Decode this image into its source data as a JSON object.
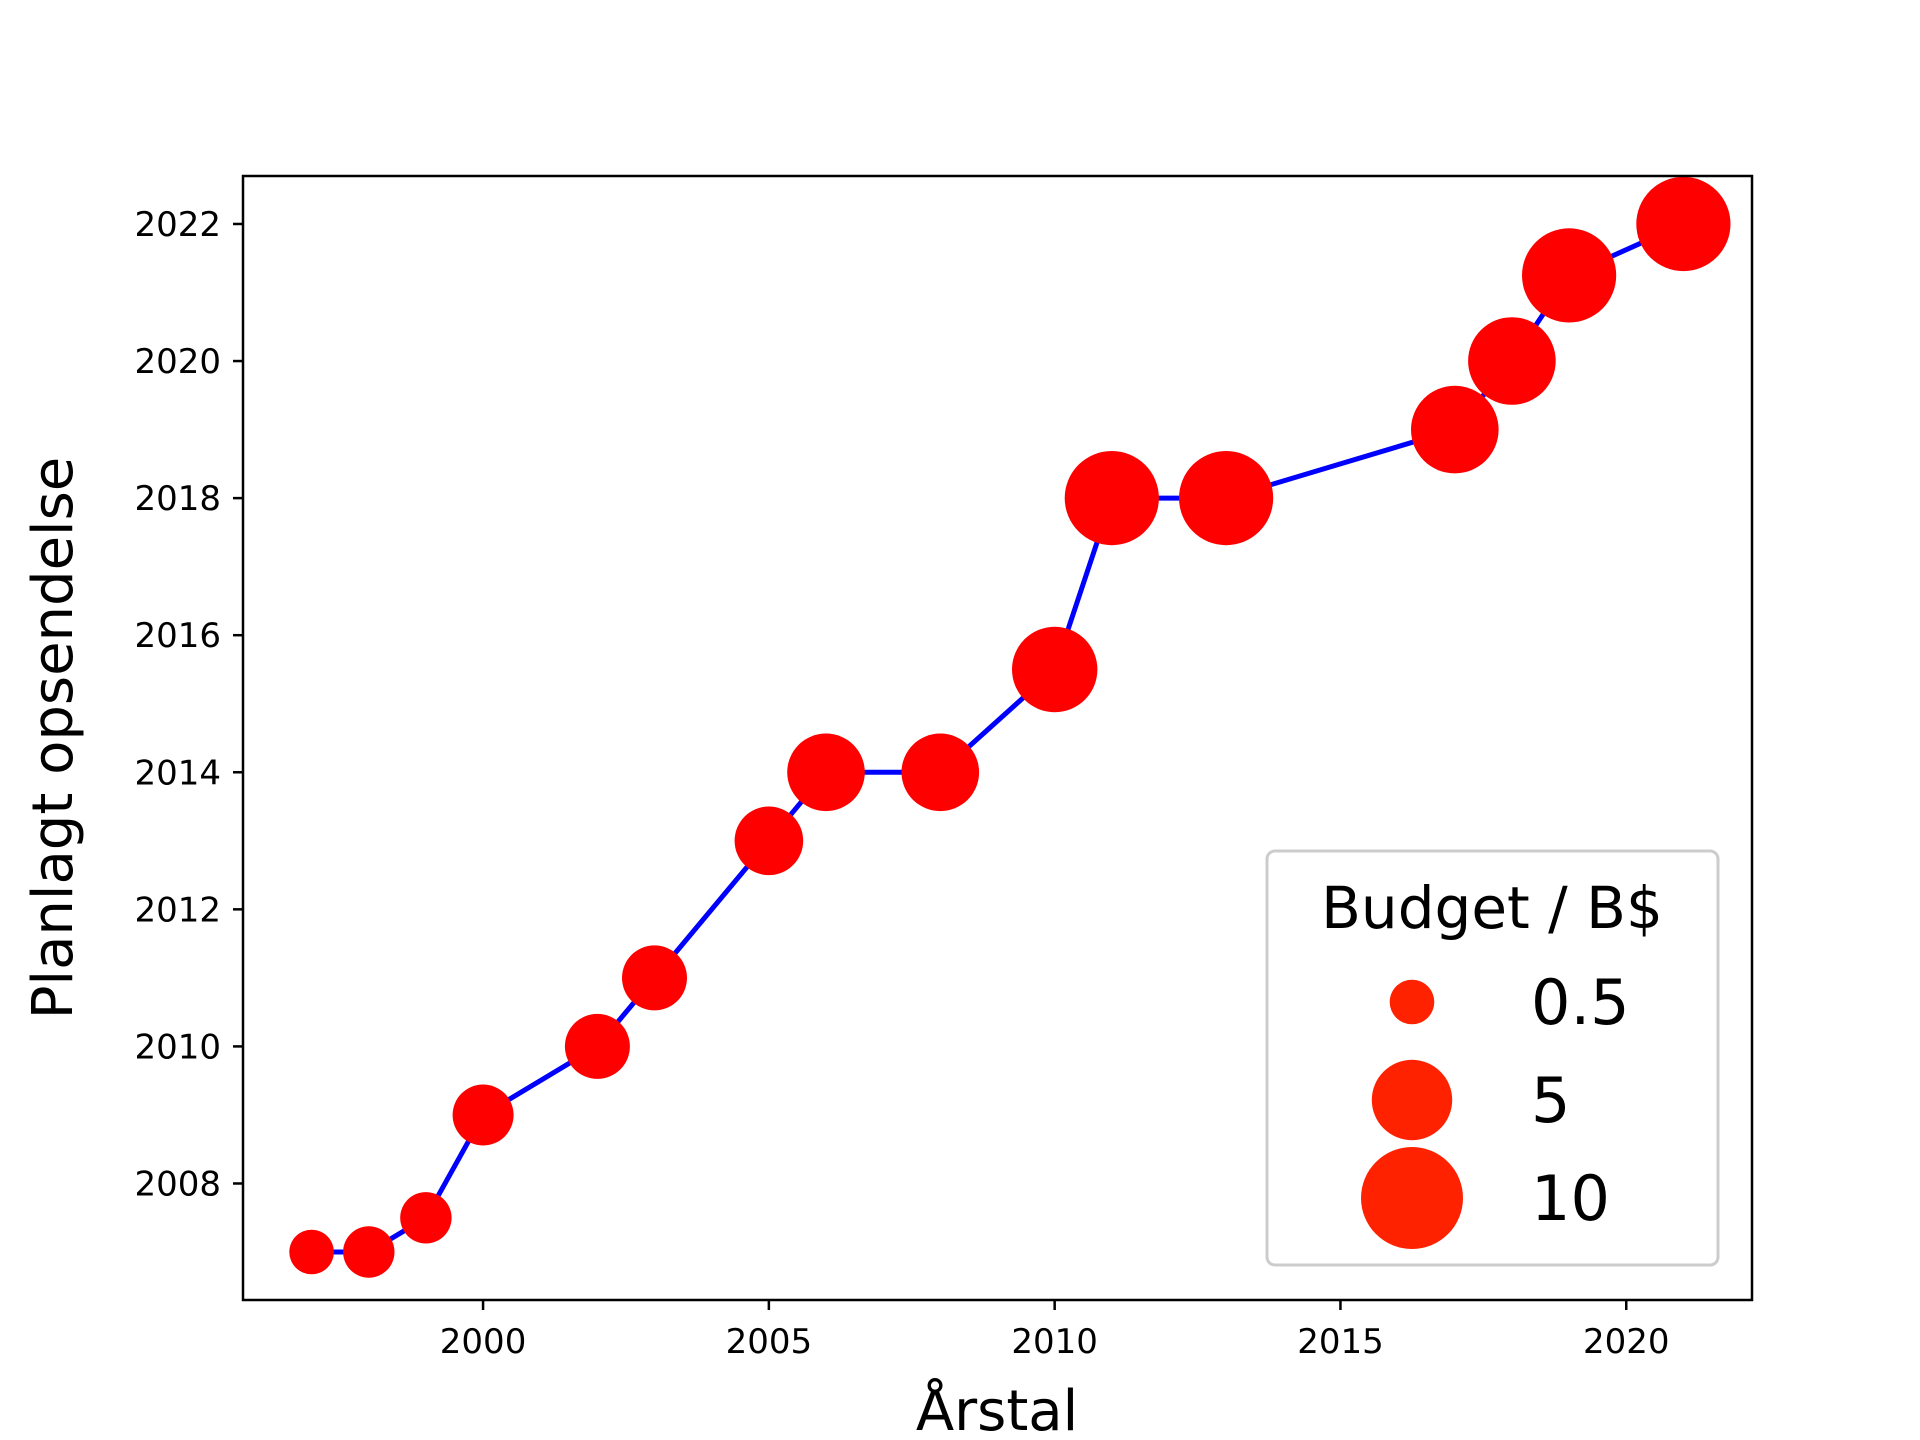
{
  "chart_data": {
    "type": "scatter",
    "xlabel": "Årstal",
    "ylabel": "Planlagt opsendelse",
    "xlim": [
      1995.8,
      2022.2
    ],
    "ylim": [
      2006.3,
      2022.7
    ],
    "xticks": [
      2000,
      2005,
      2010,
      2015,
      2020
    ],
    "yticks": [
      2008,
      2010,
      2012,
      2014,
      2016,
      2018,
      2020,
      2022
    ],
    "grid": false,
    "line_color": "#0000ff",
    "marker_color": "#ff0000",
    "points": [
      {
        "x": 1997,
        "y": 2007.0,
        "budget": 0.5
      },
      {
        "x": 1998,
        "y": 2007.0,
        "budget": 1.0
      },
      {
        "x": 1999,
        "y": 2007.5,
        "budget": 1.0
      },
      {
        "x": 2000,
        "y": 2009.0,
        "budget": 2.0
      },
      {
        "x": 2002,
        "y": 2010.0,
        "budget": 2.5
      },
      {
        "x": 2003,
        "y": 2011.0,
        "budget": 2.5
      },
      {
        "x": 2005,
        "y": 2013.0,
        "budget": 3.0
      },
      {
        "x": 2006,
        "y": 2014.0,
        "budget": 4.5
      },
      {
        "x": 2008,
        "y": 2014.0,
        "budget": 4.5
      },
      {
        "x": 2010,
        "y": 2015.5,
        "budget": 6.0
      },
      {
        "x": 2011,
        "y": 2018.0,
        "budget": 8.0
      },
      {
        "x": 2013,
        "y": 2018.0,
        "budget": 8.0
      },
      {
        "x": 2017,
        "y": 2019.0,
        "budget": 6.5
      },
      {
        "x": 2018,
        "y": 2020.0,
        "budget": 6.5
      },
      {
        "x": 2019,
        "y": 2021.25,
        "budget": 8.0
      },
      {
        "x": 2021,
        "y": 2022.0,
        "budget": 8.0
      }
    ],
    "legend": {
      "title": "Budget / B$",
      "placement": "lower-right",
      "marker_color": "#ff2200",
      "entries": [
        {
          "label": "0.5",
          "budget": 0.5
        },
        {
          "label": "5",
          "budget": 5
        },
        {
          "label": "10",
          "budget": 10
        }
      ]
    }
  }
}
